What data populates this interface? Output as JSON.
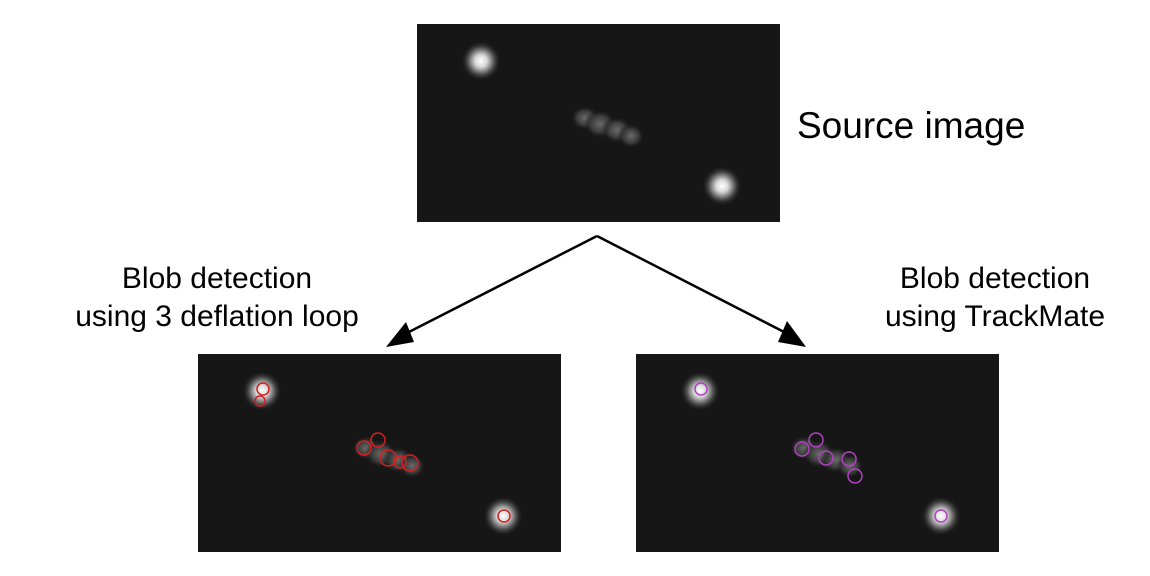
{
  "source": {
    "label": "Source image"
  },
  "left": {
    "label": [
      "Blob detection",
      "using 3 deflation loop"
    ]
  },
  "right": {
    "label": [
      "Blob detection",
      "using TrackMate"
    ]
  }
}
